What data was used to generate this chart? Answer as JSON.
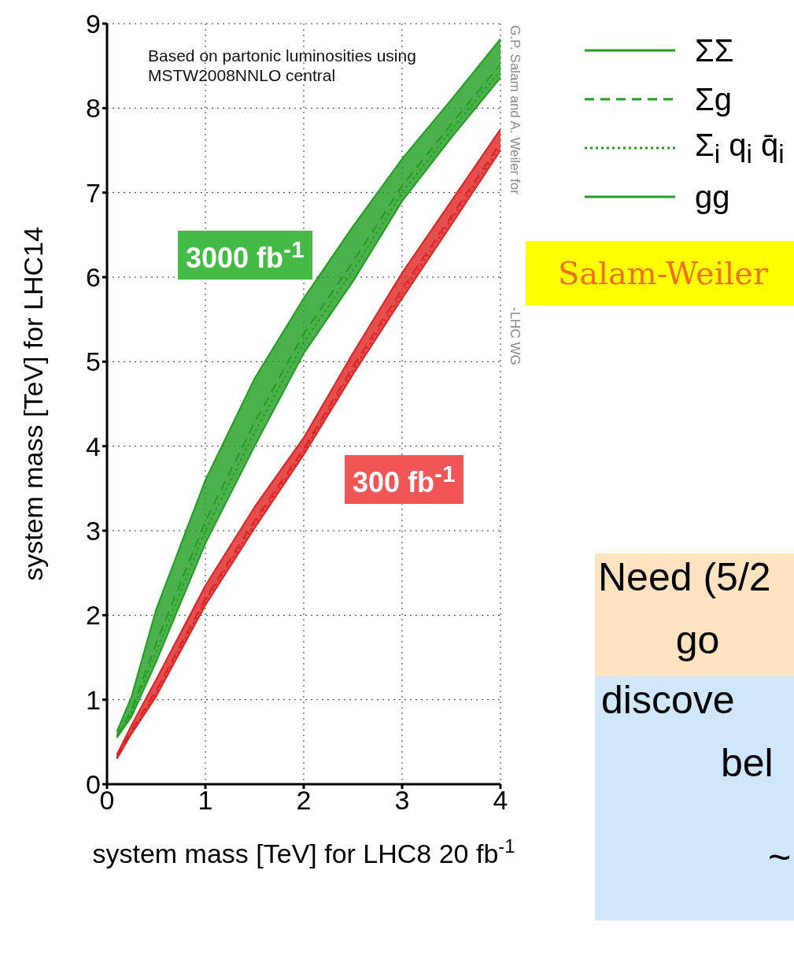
{
  "chart_data": {
    "type": "line",
    "xlabel": "system mass [TeV] for LHC8 20 fb$^{-1}$",
    "ylabel": "system mass [TeV] for LHC14",
    "x": [
      0.1,
      0.25,
      0.5,
      1,
      1.5,
      2,
      2.5,
      3,
      3.5,
      4
    ],
    "xlim": [
      0,
      4
    ],
    "xticks": [
      0,
      1,
      2,
      3,
      4
    ],
    "ylim": [
      0,
      9
    ],
    "yticks": [
      0,
      1,
      2,
      3,
      4,
      5,
      6,
      7,
      8,
      9
    ],
    "grid": true,
    "legend": "top right",
    "series": [
      {
        "name": "ΣΣ",
        "color": "#1f9e1f",
        "line_style": "solid",
        "values": [
          0.62,
          1.04,
          2.07,
          3.6,
          4.8,
          5.75,
          6.6,
          7.4,
          8.1,
          8.82
        ]
      },
      {
        "name": "Σg",
        "color": "#1f9e1f",
        "line_style": "dashed",
        "values": [
          0.57,
          0.88,
          1.67,
          3.11,
          4.28,
          5.33,
          6.18,
          7.08,
          7.81,
          8.52
        ],
        "lower": [
          0.55,
          0.8,
          1.45,
          2.85,
          4.0,
          5.1,
          5.95,
          6.9,
          7.65,
          8.36
        ],
        "upper": [
          0.62,
          1.04,
          2.07,
          3.6,
          4.8,
          5.75,
          6.6,
          7.4,
          8.1,
          8.82
        ]
      },
      {
        "name": "Σ$_{i}$ q$_{i}$ q̄$_{i}$",
        "color": "#1f9e1f",
        "line_style": "dotted",
        "values": [
          0.56,
          0.85,
          1.57,
          3.0,
          4.16,
          5.23,
          6.08,
          7.0,
          7.74,
          8.45
        ]
      },
      {
        "name": "gg",
        "color": "#1f9e1f",
        "line_style": "solid",
        "values": [
          0.55,
          0.8,
          1.45,
          2.85,
          4.0,
          5.1,
          5.95,
          6.9,
          7.65,
          8.36
        ]
      },
      {
        "color": "#dd2222",
        "line_style": "solid",
        "values": [
          0.35,
          0.7,
          1.24,
          2.35,
          3.28,
          4.1,
          5.1,
          6.05,
          6.9,
          7.75
        ]
      },
      {
        "color": "#dd2222",
        "line_style": "dashed",
        "values": [
          0.32,
          0.64,
          1.11,
          2.2,
          3.12,
          3.97,
          4.94,
          5.86,
          6.72,
          7.59
        ],
        "lower": [
          0.3,
          0.6,
          1.04,
          2.12,
          3.03,
          3.9,
          4.85,
          5.75,
          6.62,
          7.5
        ],
        "upper": [
          0.35,
          0.7,
          1.24,
          2.35,
          3.28,
          4.1,
          5.1,
          6.05,
          6.9,
          7.75
        ]
      },
      {
        "color": "#dd2222",
        "line_style": "dotted",
        "values": [
          0.31,
          0.62,
          1.08,
          2.17,
          3.08,
          3.94,
          4.9,
          5.81,
          6.68,
          7.55
        ]
      },
      {
        "color": "#dd2222",
        "line_style": "solid",
        "values": [
          0.3,
          0.6,
          1.04,
          2.12,
          3.03,
          3.9,
          4.85,
          5.75,
          6.62,
          7.5
        ]
      }
    ],
    "annotations": [
      "Based on partonic luminosities using MSTW2008NNLO central",
      "3000 fb$^{-1}$",
      "300 fb$^{-1}$",
      "G.P. Salam and A. Weiler for",
      "-LHC WG",
      "Salam-Weiler",
      "Need (5/2",
      "go",
      "discove",
      "bel",
      "~"
    ]
  }
}
